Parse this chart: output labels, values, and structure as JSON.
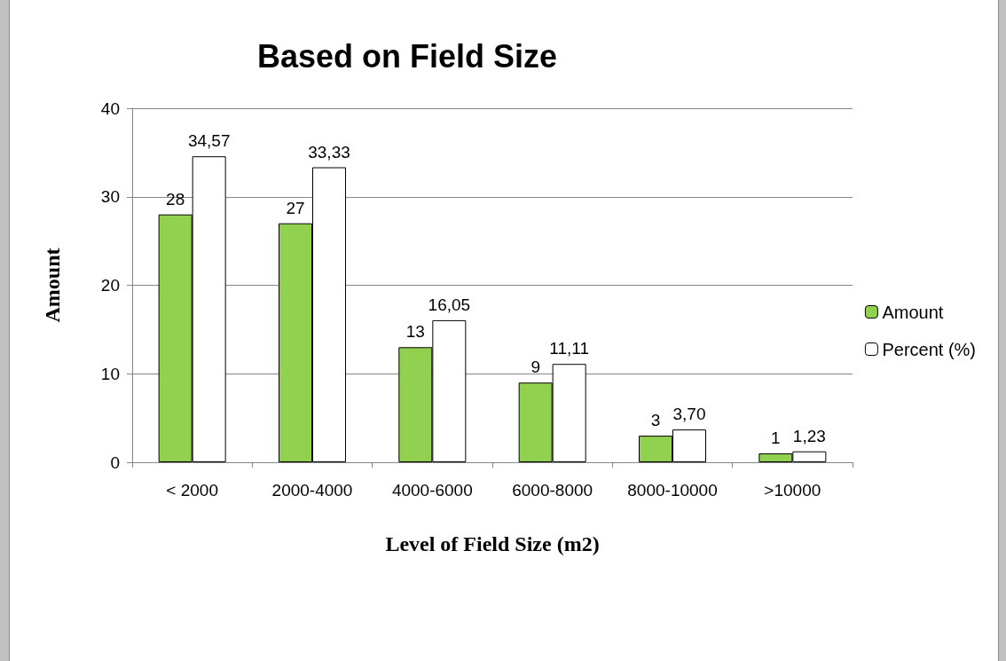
{
  "chart_data": {
    "type": "bar",
    "title": "Based on Field Size",
    "xlabel": "Level of Field Size (m2)",
    "ylabel": "Amount",
    "categories": [
      "< 2000",
      "2000-4000",
      "4000-6000",
      "6000-8000",
      "8000-10000",
      ">10000"
    ],
    "series": [
      {
        "name": "Amount",
        "color": "#92d050",
        "values": [
          28,
          27,
          13,
          9,
          3,
          1
        ],
        "value_labels": [
          "28",
          "27",
          "13",
          "9",
          "3",
          "1"
        ]
      },
      {
        "name": "Percent (%)",
        "color": "#ffffff",
        "values": [
          34.57,
          33.33,
          16.05,
          11.11,
          3.7,
          1.23
        ],
        "value_labels": [
          "34,57",
          "33,33",
          "16,05",
          "11,11",
          "3,70",
          "1,23"
        ]
      }
    ],
    "ylim": [
      0,
      40
    ],
    "yticks": [
      0,
      10,
      20,
      30,
      40
    ],
    "grid": "y",
    "legend": "right"
  }
}
